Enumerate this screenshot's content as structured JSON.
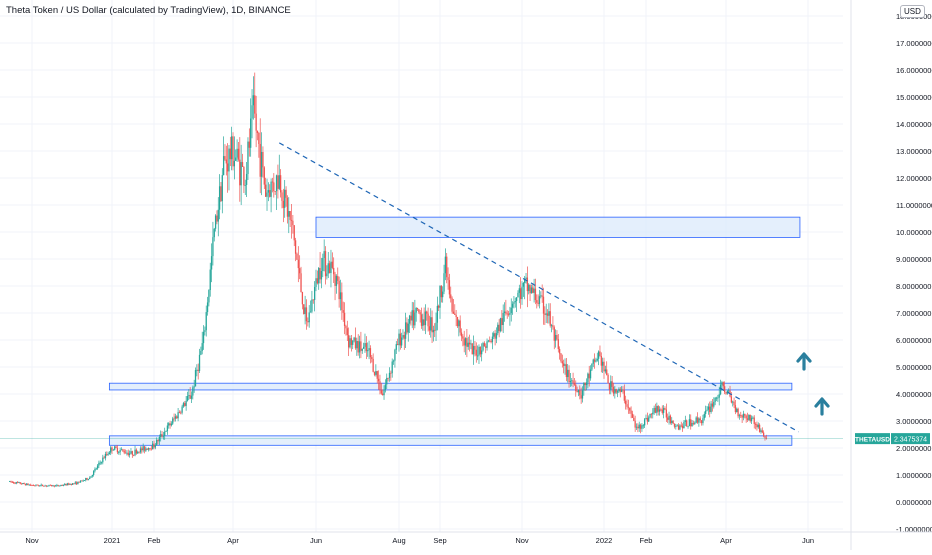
{
  "chart": {
    "title": "Theta Token / US Dollar (calculated by TradingView), 1D, BINANCE",
    "currency": "USD",
    "price_label": {
      "symbol": "THETAUSD",
      "value": "2.3475374"
    }
  },
  "colors": {
    "up": "#26a69a",
    "down": "#ef5350",
    "zone_fill": "#dbe9fb",
    "zone_stroke": "#2962ff",
    "trendline": "#1e66b6",
    "arrow": "#2a7f9e",
    "label_bg": "#26a69a"
  },
  "chart_data": {
    "type": "candlestick",
    "y_ticks": [
      "-1.0000000",
      "0.0000000",
      "1.0000000",
      "2.0000000",
      "3.0000000",
      "4.0000000",
      "5.0000000",
      "6.0000000",
      "7.0000000",
      "8.0000000",
      "9.0000000",
      "10.0000000",
      "11.0000000",
      "12.0000000",
      "13.0000000",
      "14.0000000",
      "15.0000000",
      "16.0000000",
      "17.0000000",
      "18.0000000"
    ],
    "x_ticks": [
      "Nov",
      "2021",
      "Feb",
      "Apr",
      "Jun",
      "Aug",
      "Sep",
      "Nov",
      "2022",
      "Feb",
      "Apr",
      "Jun"
    ],
    "ylim": [
      -1,
      18
    ],
    "price_path": [
      {
        "date": "2020-10-15",
        "price": 0.75
      },
      {
        "date": "2020-11-01",
        "price": 0.62
      },
      {
        "date": "2020-11-20",
        "price": 0.6
      },
      {
        "date": "2020-12-05",
        "price": 0.7
      },
      {
        "date": "2020-12-15",
        "price": 0.9
      },
      {
        "date": "2020-12-25",
        "price": 1.6
      },
      {
        "date": "2021-01-01",
        "price": 2.0
      },
      {
        "date": "2021-01-15",
        "price": 1.8
      },
      {
        "date": "2021-02-01",
        "price": 2.1
      },
      {
        "date": "2021-02-15",
        "price": 3.0
      },
      {
        "date": "2021-03-01",
        "price": 4.0
      },
      {
        "date": "2021-03-10",
        "price": 6.0
      },
      {
        "date": "2021-03-18",
        "price": 10.0
      },
      {
        "date": "2021-03-25",
        "price": 12.5
      },
      {
        "date": "2021-04-01",
        "price": 13.0
      },
      {
        "date": "2021-04-10",
        "price": 12.0
      },
      {
        "date": "2021-04-16",
        "price": 14.5
      },
      {
        "date": "2021-04-25",
        "price": 11.5
      },
      {
        "date": "2021-05-05",
        "price": 12.0
      },
      {
        "date": "2021-05-15",
        "price": 10.0
      },
      {
        "date": "2021-05-25",
        "price": 6.5
      },
      {
        "date": "2021-06-05",
        "price": 9.0
      },
      {
        "date": "2021-06-15",
        "price": 8.5
      },
      {
        "date": "2021-06-25",
        "price": 6.0
      },
      {
        "date": "2021-07-10",
        "price": 5.5
      },
      {
        "date": "2021-07-20",
        "price": 4.0
      },
      {
        "date": "2021-08-01",
        "price": 6.0
      },
      {
        "date": "2021-08-15",
        "price": 7.0
      },
      {
        "date": "2021-08-28",
        "price": 6.5
      },
      {
        "date": "2021-09-05",
        "price": 8.8
      },
      {
        "date": "2021-09-10",
        "price": 7.0
      },
      {
        "date": "2021-09-25",
        "price": 5.5
      },
      {
        "date": "2021-10-10",
        "price": 6.0
      },
      {
        "date": "2021-10-25",
        "price": 7.5
      },
      {
        "date": "2021-11-05",
        "price": 8.0
      },
      {
        "date": "2021-11-20",
        "price": 7.0
      },
      {
        "date": "2021-12-01",
        "price": 5.0
      },
      {
        "date": "2021-12-15",
        "price": 4.0
      },
      {
        "date": "2021-12-28",
        "price": 5.5
      },
      {
        "date": "2022-01-05",
        "price": 4.3
      },
      {
        "date": "2022-01-15",
        "price": 4.0
      },
      {
        "date": "2022-01-25",
        "price": 2.7
      },
      {
        "date": "2022-02-10",
        "price": 3.5
      },
      {
        "date": "2022-02-25",
        "price": 2.8
      },
      {
        "date": "2022-03-15",
        "price": 3.1
      },
      {
        "date": "2022-03-30",
        "price": 4.3
      },
      {
        "date": "2022-04-10",
        "price": 3.3
      },
      {
        "date": "2022-04-20",
        "price": 3.1
      },
      {
        "date": "2022-05-01",
        "price": 2.35
      }
    ],
    "annotations": {
      "zones": [
        {
          "date_from": "2021-06-01",
          "date_to": "2022-05-26",
          "low": 9.8,
          "high": 10.55
        },
        {
          "date_from": "2020-12-30",
          "date_to": "2022-05-20",
          "low": 4.15,
          "high": 4.4
        },
        {
          "date_from": "2020-12-30",
          "date_to": "2022-05-20",
          "low": 2.1,
          "high": 2.45
        }
      ],
      "trendline": {
        "from": {
          "date": "2021-05-05",
          "price": 13.3
        },
        "to": {
          "date": "2022-05-25",
          "price": 2.6
        }
      },
      "arrows": [
        "up",
        "up"
      ],
      "last_price": 2.3475374
    }
  }
}
